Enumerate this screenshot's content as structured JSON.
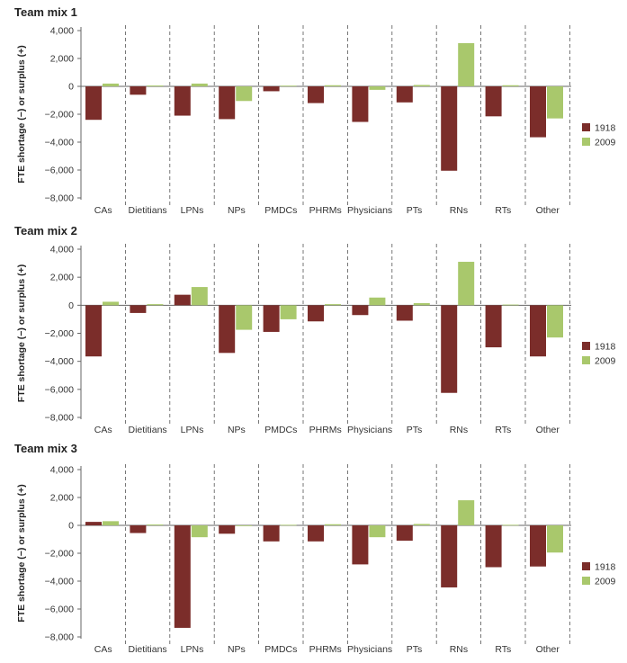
{
  "figure": {
    "ylabel": "FTE shortage (−) or surplus (+)"
  },
  "chart_data": [
    {
      "type": "bar",
      "title": "Team mix 1",
      "xlabel": "",
      "ylabel": "FTE shortage (−) or surplus (+)",
      "categories": [
        "CAs",
        "Dietitians",
        "LPNs",
        "NPs",
        "PMDCs",
        "PHRMs",
        "Physicians",
        "PTs",
        "RNs",
        "RTs",
        "Other"
      ],
      "series": [
        {
          "name": "1918",
          "color": "#7b2d2a",
          "values": [
            -2400,
            -600,
            -2100,
            -2350,
            -350,
            -1200,
            -2550,
            -1150,
            -6050,
            -2150,
            -3650
          ]
        },
        {
          "name": "2009",
          "color": "#a9c86c",
          "values": [
            200,
            60,
            200,
            -1050,
            50,
            80,
            -250,
            100,
            3100,
            80,
            -2300
          ]
        }
      ],
      "ylim": [
        -8000,
        4000
      ],
      "yticks": [
        4000,
        2000,
        0,
        -2000,
        -4000,
        -6000,
        -8000
      ],
      "ytick_labels": [
        "4,000",
        "2,000",
        "0",
        "−2,000",
        "−4,000",
        "−6,000",
        "−8,000"
      ],
      "legend": [
        "1918",
        "2009"
      ],
      "legend_position": "right"
    },
    {
      "type": "bar",
      "title": "Team mix 2",
      "xlabel": "",
      "ylabel": "FTE shortage (−) or surplus (+)",
      "categories": [
        "CAs",
        "Dietitians",
        "LPNs",
        "NPs",
        "PMDCs",
        "PHRMs",
        "Physicians",
        "PTs",
        "RNs",
        "RTs",
        "Other"
      ],
      "series": [
        {
          "name": "1918",
          "color": "#7b2d2a",
          "values": [
            -3650,
            -550,
            750,
            -3400,
            -1900,
            -1150,
            -700,
            -1100,
            -6250,
            -3000,
            -3650
          ]
        },
        {
          "name": "2009",
          "color": "#a9c86c",
          "values": [
            250,
            80,
            1300,
            -1750,
            -1000,
            80,
            550,
            150,
            3100,
            50,
            -2300
          ]
        }
      ],
      "ylim": [
        -8000,
        4000
      ],
      "yticks": [
        4000,
        2000,
        0,
        -2000,
        -4000,
        -6000,
        -8000
      ],
      "ytick_labels": [
        "4,000",
        "2,000",
        "0",
        "−2,000",
        "−4,000",
        "−6,000",
        "−8,000"
      ],
      "legend": [
        "1918",
        "2009"
      ],
      "legend_position": "right"
    },
    {
      "type": "bar",
      "title": "Team mix 3",
      "xlabel": "",
      "ylabel": "FTE shortage (−) or surplus (+)",
      "categories": [
        "CAs",
        "Dietitians",
        "LPNs",
        "NPs",
        "PMDCs",
        "PHRMs",
        "Physicians",
        "PTs",
        "RNs",
        "RTs",
        "Other"
      ],
      "series": [
        {
          "name": "1918",
          "color": "#7b2d2a",
          "values": [
            250,
            -550,
            -7350,
            -600,
            -1150,
            -1150,
            -2800,
            -1100,
            -4450,
            -3000,
            -2950
          ]
        },
        {
          "name": "2009",
          "color": "#a9c86c",
          "values": [
            300,
            60,
            -850,
            -40,
            40,
            80,
            -850,
            100,
            1800,
            40,
            -1950
          ]
        }
      ],
      "ylim": [
        -8000,
        4000
      ],
      "yticks": [
        4000,
        2000,
        0,
        -2000,
        -4000,
        -6000,
        -8000
      ],
      "ytick_labels": [
        "4,000",
        "2,000",
        "0",
        "−2,000",
        "−4,000",
        "−6,000",
        "−8,000"
      ],
      "legend": [
        "1918",
        "2009"
      ],
      "legend_position": "right"
    }
  ]
}
